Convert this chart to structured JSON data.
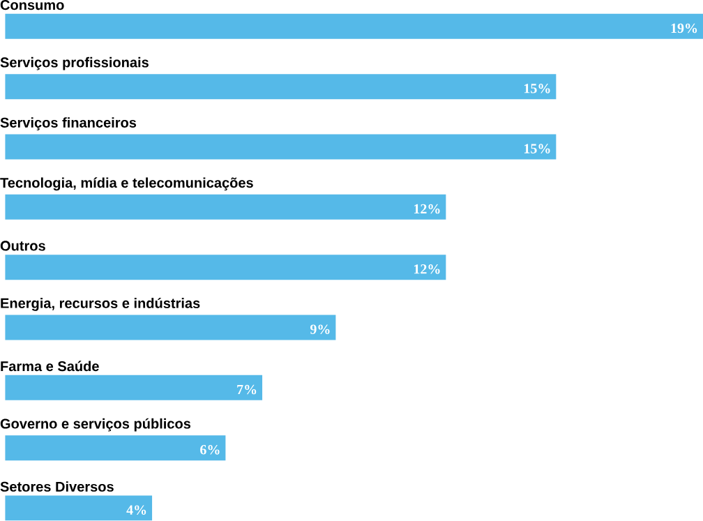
{
  "chart_data": {
    "type": "bar",
    "orientation": "horizontal",
    "color": "#55b9e8",
    "categories": [
      "Consumo",
      "Serviços profissionais",
      "Serviços financeiros",
      "Tecnologia, mídia e telecomunicações",
      "Outros",
      "Energia, recursos e indústrias",
      "Farma e Saúde",
      "Governo e serviços públicos",
      "Setores Diversos"
    ],
    "values": [
      19,
      15,
      15,
      12,
      12,
      9,
      7,
      6,
      4
    ],
    "value_labels": [
      "19%",
      "15%",
      "15%",
      "12%",
      "12%",
      "9%",
      "7%",
      "6%",
      "4%"
    ]
  }
}
